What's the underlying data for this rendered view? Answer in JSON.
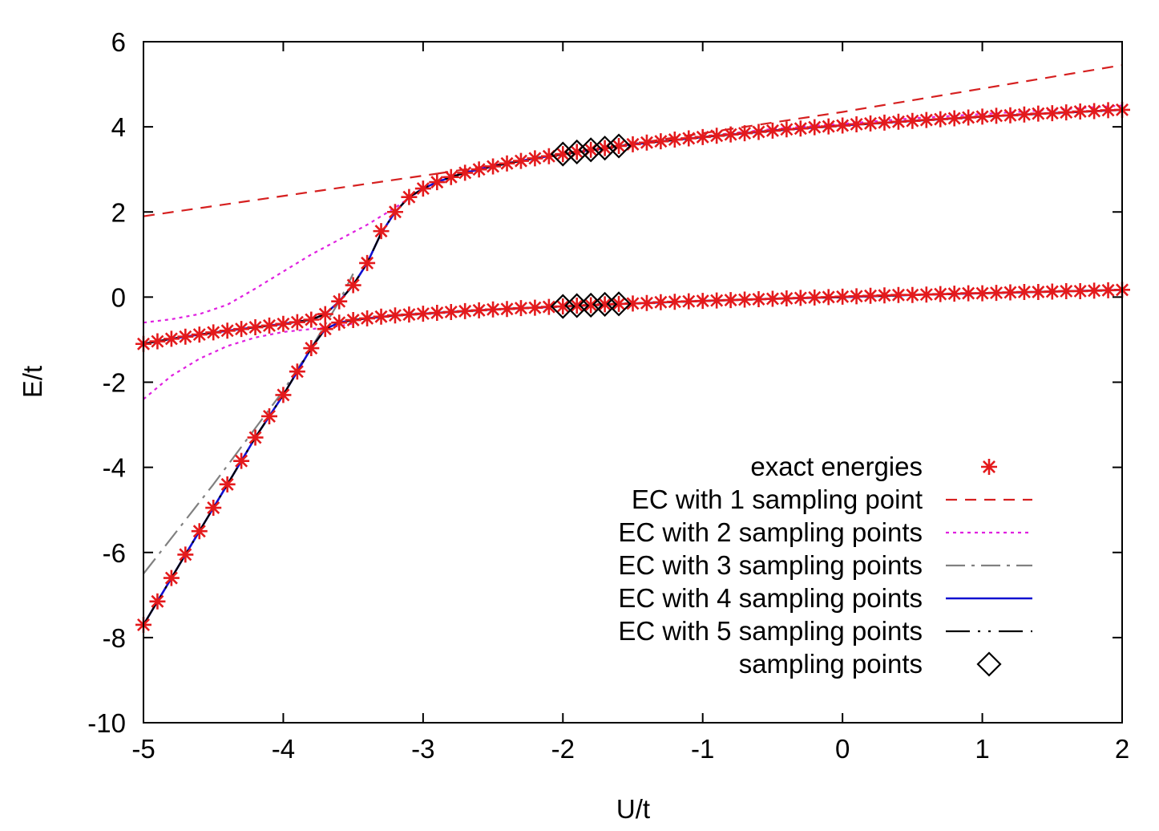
{
  "chart_data": {
    "type": "line",
    "xlabel": "U/t",
    "ylabel": "E/t",
    "xlim": [
      -5,
      2
    ],
    "ylim": [
      -10,
      6
    ],
    "xticks": [
      "-5",
      "-4",
      "-3",
      "-2",
      "-1",
      "0",
      "1",
      "2"
    ],
    "yticks": [
      "-10",
      "-8",
      "-6",
      "-4",
      "-2",
      "0",
      "2",
      "4",
      "6"
    ],
    "grid": false,
    "legend_position": "bottom-right",
    "legend": [
      "exact energies",
      "EC with 1 sampling point",
      "EC with 2 sampling points",
      "EC with 3 sampling points",
      "EC with 4 sampling points",
      "EC with 5 sampling points",
      "sampling points"
    ],
    "colors": {
      "exact": "#e41a1c",
      "ec1": "#d62020",
      "ec2": "#e020e0",
      "ec3": "#808080",
      "ec4": "#1010d0",
      "ec5": "#000000",
      "sampling": "#000000"
    },
    "series": [
      {
        "name": "exact energies",
        "style": "points-star",
        "branches": [
          {
            "x": [
              -5.0,
              -4.9,
              -4.8,
              -4.7,
              -4.6,
              -4.5,
              -4.4,
              -4.3,
              -4.2,
              -4.1,
              -4.0,
              -3.9,
              -3.8,
              -3.7,
              -3.6,
              -3.5,
              -3.4,
              -3.3,
              -3.2,
              -3.1,
              -3.0,
              -2.9,
              -2.8,
              -2.7,
              -2.6,
              -2.5,
              -2.4,
              -2.3,
              -2.2,
              -2.1,
              -2.0,
              -1.9,
              -1.8,
              -1.7,
              -1.6,
              -1.5,
              -1.4,
              -1.3,
              -1.2,
              -1.1,
              -1.0,
              -0.9,
              -0.8,
              -0.7,
              -0.6,
              -0.5,
              -0.4,
              -0.3,
              -0.2,
              -0.1,
              0.0,
              0.1,
              0.2,
              0.3,
              0.4,
              0.5,
              0.6,
              0.7,
              0.8,
              0.9,
              1.0,
              1.1,
              1.2,
              1.3,
              1.4,
              1.5,
              1.6,
              1.7,
              1.8,
              1.9,
              2.0
            ],
            "y": [
              -1.1,
              -1.04,
              -0.98,
              -0.93,
              -0.88,
              -0.83,
              -0.79,
              -0.75,
              -0.71,
              -0.67,
              -0.63,
              -0.59,
              -0.53,
              -0.4,
              -0.1,
              0.28,
              0.8,
              1.55,
              2.0,
              2.35,
              2.55,
              2.7,
              2.82,
              2.92,
              3.0,
              3.07,
              3.14,
              3.2,
              3.26,
              3.31,
              3.36,
              3.41,
              3.46,
              3.5,
              3.55,
              3.59,
              3.63,
              3.66,
              3.7,
              3.73,
              3.76,
              3.79,
              3.82,
              3.85,
              3.88,
              3.91,
              3.94,
              3.96,
              3.99,
              4.01,
              4.03,
              4.06,
              4.08,
              4.1,
              4.12,
              4.14,
              4.16,
              4.18,
              4.2,
              4.22,
              4.24,
              4.26,
              4.27,
              4.29,
              4.31,
              4.32,
              4.34,
              4.36,
              4.37,
              4.39,
              4.4
            ]
          },
          {
            "x": [
              -5.0,
              -4.9,
              -4.8,
              -4.7,
              -4.6,
              -4.5,
              -4.4,
              -4.3,
              -4.2,
              -4.1,
              -4.0,
              -3.9,
              -3.8,
              -3.7,
              -3.6,
              -3.5,
              -3.4,
              -3.3,
              -3.2,
              -3.1,
              -3.0,
              -2.9,
              -2.8,
              -2.7,
              -2.6,
              -2.5,
              -2.4,
              -2.3,
              -2.2,
              -2.1,
              -2.0,
              -1.9,
              -1.8,
              -1.7,
              -1.6,
              -1.5,
              -1.4,
              -1.3,
              -1.2,
              -1.1,
              -1.0,
              -0.9,
              -0.8,
              -0.7,
              -0.6,
              -0.5,
              -0.4,
              -0.3,
              -0.2,
              -0.1,
              0.0,
              0.1,
              0.2,
              0.3,
              0.4,
              0.5,
              0.6,
              0.7,
              0.8,
              0.9,
              1.0,
              1.1,
              1.2,
              1.3,
              1.4,
              1.5,
              1.6,
              1.7,
              1.8,
              1.9,
              2.0
            ],
            "y": [
              -7.7,
              -7.15,
              -6.6,
              -6.05,
              -5.5,
              -4.95,
              -4.4,
              -3.85,
              -3.3,
              -2.8,
              -2.3,
              -1.75,
              -1.2,
              -0.75,
              -0.6,
              -0.54,
              -0.5,
              -0.46,
              -0.43,
              -0.41,
              -0.39,
              -0.37,
              -0.35,
              -0.33,
              -0.31,
              -0.29,
              -0.28,
              -0.26,
              -0.25,
              -0.23,
              -0.22,
              -0.2,
              -0.19,
              -0.17,
              -0.16,
              -0.15,
              -0.14,
              -0.12,
              -0.11,
              -0.1,
              -0.09,
              -0.08,
              -0.07,
              -0.06,
              -0.05,
              -0.04,
              -0.03,
              -0.02,
              -0.01,
              0.0,
              0.01,
              0.02,
              0.03,
              0.04,
              0.05,
              0.05,
              0.06,
              0.07,
              0.08,
              0.09,
              0.09,
              0.1,
              0.11,
              0.12,
              0.12,
              0.13,
              0.14,
              0.14,
              0.15,
              0.16,
              0.17
            ]
          }
        ]
      },
      {
        "name": "EC with 1 sampling point",
        "style": "dashed",
        "branches": [
          {
            "x": [
              -5.0,
              -2.9
            ],
            "y": [
              1.9,
              2.9
            ]
          },
          {
            "x": [
              -2.9,
              -2.0,
              -1.0,
              0.0,
              1.0,
              2.0
            ],
            "y": [
              2.9,
              3.35,
              3.85,
              4.35,
              4.9,
              5.45
            ]
          }
        ]
      },
      {
        "name": "EC with 2 sampling points",
        "style": "dotted",
        "branches": [
          {
            "x": [
              -5.0,
              -4.8,
              -4.6,
              -4.4,
              -4.2,
              -4.0,
              -3.8,
              -3.6,
              -3.4,
              -3.2,
              -3.0,
              -2.8,
              -2.6,
              -2.4,
              -2.2,
              -2.0,
              -1.5,
              -1.0,
              -0.5,
              0.0,
              0.5,
              1.0,
              1.5,
              2.0
            ],
            "y": [
              -0.6,
              -0.52,
              -0.4,
              -0.18,
              0.2,
              0.6,
              1.0,
              1.35,
              1.7,
              2.1,
              2.55,
              2.85,
              3.02,
              3.15,
              3.26,
              3.36,
              3.59,
              3.78,
              3.95,
              4.07,
              4.2,
              4.3,
              4.4,
              4.5
            ]
          },
          {
            "x": [
              -5.0,
              -4.8,
              -4.6,
              -4.4,
              -4.2,
              -4.0,
              -3.8,
              -3.7,
              -3.6,
              -3.5
            ],
            "y": [
              -2.4,
              -1.85,
              -1.45,
              -1.15,
              -0.95,
              -0.82,
              -0.75,
              -0.72,
              -0.68,
              -0.62
            ]
          }
        ]
      },
      {
        "name": "EC with 3 sampling points",
        "style": "dashdot",
        "branches": [
          {
            "x": [
              -5.0,
              -4.5,
              -4.0,
              -3.8,
              -3.6,
              -3.5
            ],
            "y": [
              -6.5,
              -4.4,
              -2.2,
              -1.2,
              -0.1,
              0.55
            ]
          }
        ]
      },
      {
        "name": "EC with 4 sampling points",
        "style": "solid",
        "branches": [
          {
            "x": [
              -5.0,
              -4.8,
              -4.6,
              -4.4,
              -4.2,
              -4.0,
              -3.8,
              -3.7,
              -3.6,
              -3.5,
              -3.4,
              -3.3,
              -3.2,
              -3.1,
              -3.0,
              -2.9,
              -2.8,
              -2.7,
              -2.6,
              -2.4,
              -2.2,
              -2.0,
              -1.5,
              -1.0,
              -0.5,
              0.0,
              0.5,
              1.0,
              1.5,
              2.0
            ],
            "y": [
              -1.1,
              -0.98,
              -0.88,
              -0.79,
              -0.71,
              -0.63,
              -0.53,
              -0.4,
              -0.1,
              0.28,
              0.8,
              1.5,
              2.0,
              2.35,
              2.55,
              2.7,
              2.82,
              2.92,
              3.0,
              3.14,
              3.26,
              3.36,
              3.59,
              3.76,
              3.91,
              4.03,
              4.14,
              4.24,
              4.32,
              4.4
            ]
          },
          {
            "x": [
              -5.0,
              -4.8,
              -4.6,
              -4.4,
              -4.2,
              -4.0,
              -3.9,
              -3.8,
              -3.7,
              -3.6,
              -3.5,
              -3.4,
              -3.2,
              -3.0,
              -2.5,
              -2.0,
              -1.5,
              -1.0,
              -0.5,
              0.0,
              0.5,
              1.0,
              1.5,
              2.0
            ],
            "y": [
              -7.7,
              -6.6,
              -5.5,
              -4.4,
              -3.3,
              -2.3,
              -1.75,
              -1.2,
              -0.75,
              -0.6,
              -0.54,
              -0.5,
              -0.43,
              -0.39,
              -0.29,
              -0.22,
              -0.15,
              -0.09,
              -0.04,
              0.0,
              0.05,
              0.09,
              0.13,
              0.17
            ]
          }
        ]
      },
      {
        "name": "EC with 5 sampling points",
        "style": "dash-dot-dot",
        "branches": [
          {
            "x": [
              -5.0,
              -4.8,
              -4.6,
              -4.4,
              -4.2,
              -4.0,
              -3.8,
              -3.7,
              -3.6,
              -3.5,
              -3.4,
              -3.3,
              -3.2,
              -3.1,
              -3.0,
              -2.9,
              -2.8,
              -2.7,
              -2.6,
              -2.4,
              -2.2,
              -2.0,
              -1.5,
              -1.0,
              -0.5,
              0.0,
              0.5,
              1.0,
              1.5,
              2.0
            ],
            "y": [
              -1.1,
              -0.98,
              -0.88,
              -0.79,
              -0.71,
              -0.63,
              -0.53,
              -0.4,
              -0.1,
              0.28,
              0.8,
              1.5,
              2.0,
              2.35,
              2.55,
              2.7,
              2.82,
              2.92,
              3.0,
              3.14,
              3.26,
              3.36,
              3.59,
              3.76,
              3.91,
              4.03,
              4.14,
              4.24,
              4.32,
              4.4
            ]
          },
          {
            "x": [
              -5.0,
              -4.8,
              -4.6,
              -4.4,
              -4.2,
              -4.0,
              -3.9,
              -3.8,
              -3.7,
              -3.6,
              -3.5,
              -3.4,
              -3.2,
              -3.0,
              -2.5,
              -2.0,
              -1.5,
              -1.0,
              -0.5,
              0.0,
              0.5,
              1.0,
              1.5,
              2.0
            ],
            "y": [
              -7.7,
              -6.6,
              -5.5,
              -4.4,
              -3.3,
              -2.3,
              -1.75,
              -1.2,
              -0.75,
              -0.6,
              -0.54,
              -0.5,
              -0.43,
              -0.39,
              -0.29,
              -0.22,
              -0.15,
              -0.09,
              -0.04,
              0.0,
              0.05,
              0.09,
              0.13,
              0.17
            ]
          }
        ]
      },
      {
        "name": "sampling points",
        "style": "points-diamond",
        "branches": [
          {
            "x": [
              -2.0,
              -1.9,
              -1.8,
              -1.7,
              -1.6
            ],
            "y": [
              3.36,
              3.41,
              3.46,
              3.5,
              3.55
            ]
          },
          {
            "x": [
              -2.0,
              -1.9,
              -1.8,
              -1.7,
              -1.6
            ],
            "y": [
              -0.22,
              -0.2,
              -0.19,
              -0.17,
              -0.16
            ]
          }
        ]
      }
    ]
  }
}
